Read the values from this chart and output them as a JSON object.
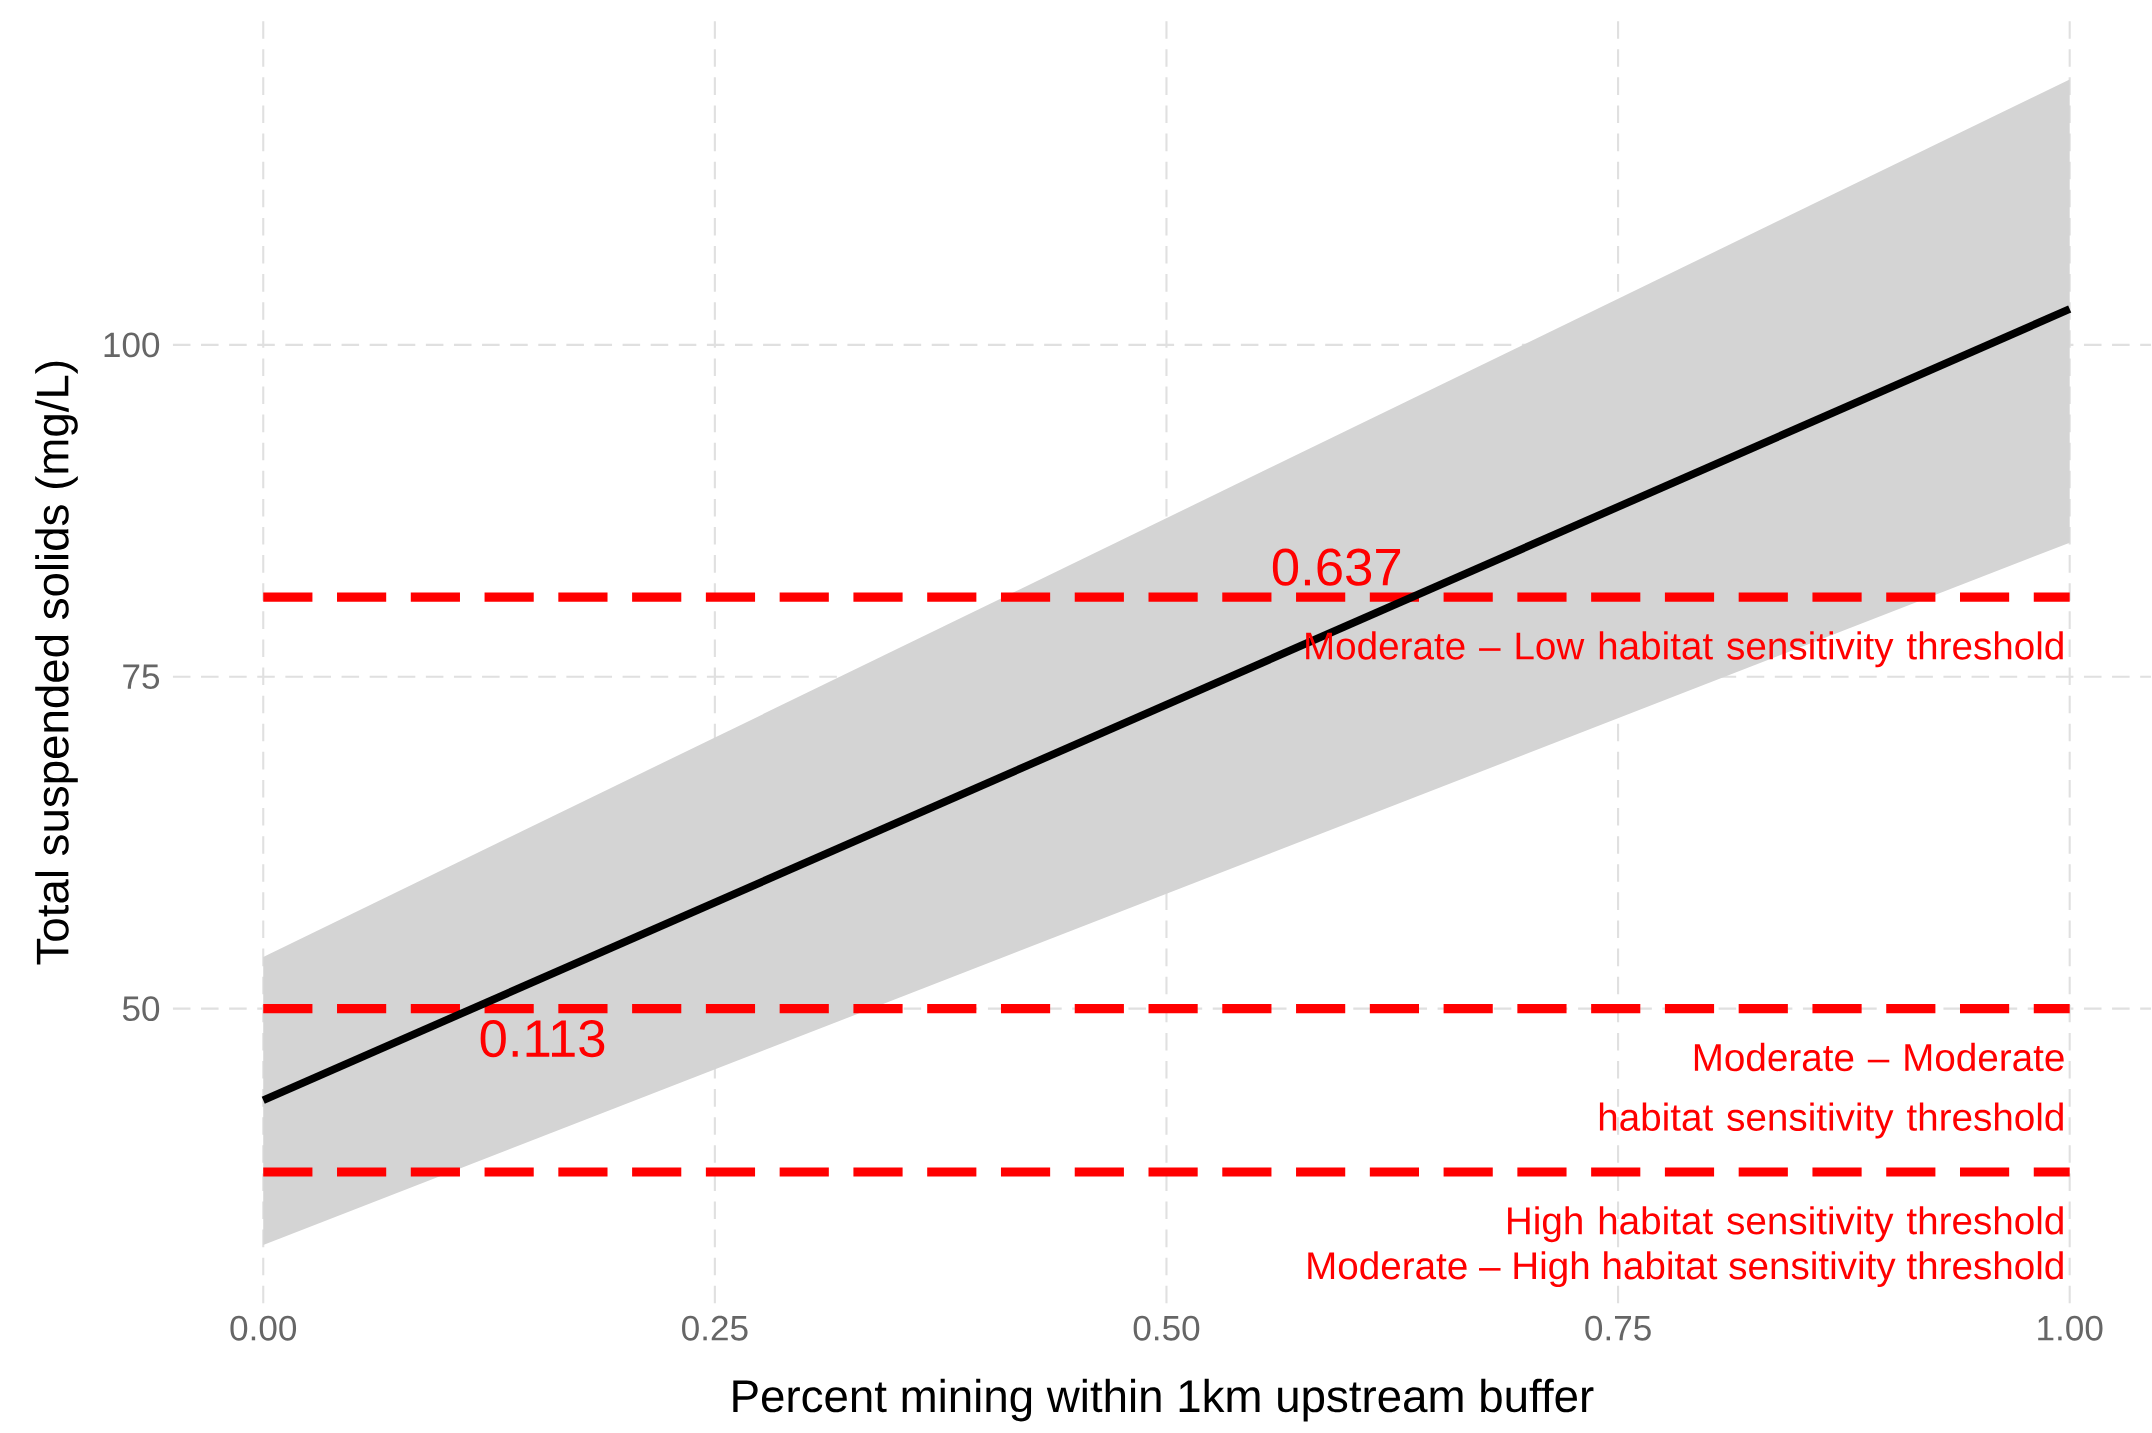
{
  "chart_data": {
    "type": "line",
    "xlabel": "Percent mining within 1km upstream buffer",
    "ylabel": "Total suspended solids (mg/L)",
    "x": [
      0,
      1
    ],
    "series": [
      {
        "color": "#000000",
        "values": [
          43.1,
          102.7
        ],
        "lower": [
          32.2,
          85.1
        ],
        "upper": [
          53.9,
          120.0
        ]
      }
    ],
    "xlim": [
      -0.05,
      1.045
    ],
    "ylim": [
      27.8,
      124.4
    ],
    "xticks": [
      {
        "value": 0,
        "label": "0.00"
      },
      {
        "value": 0.25,
        "label": "0.25"
      },
      {
        "value": 0.5,
        "label": "0.50"
      },
      {
        "value": 0.75,
        "label": "0.75"
      },
      {
        "value": 1,
        "label": "1.00"
      }
    ],
    "yticks": [
      50,
      75,
      100
    ],
    "grid": true,
    "marker": "none",
    "line_style": "solid",
    "ref_lines": [
      {
        "axis": "y",
        "value": 81.0,
        "label": "Moderate – Low habitat sensitivity threshold",
        "color": "#ff0000",
        "line_style": "dashed"
      },
      {
        "axis": "y",
        "value": 50,
        "label": "Moderate – Moderate habitat sensitivity threshold",
        "color": "#ff0000",
        "line_style": "dashed"
      },
      {
        "axis": "y",
        "value": 37.7,
        "label": "High habitat sensitivity threshold",
        "color": "#ff0000",
        "line_style": "dashed"
      }
    ],
    "annotations": [
      {
        "text": "0.637",
        "x": 0.637,
        "y": 81.0
      },
      {
        "text": "0.113",
        "x": 0.113,
        "y": 50
      },
      "Moderate – High habitat sensitivity threshold"
    ]
  }
}
